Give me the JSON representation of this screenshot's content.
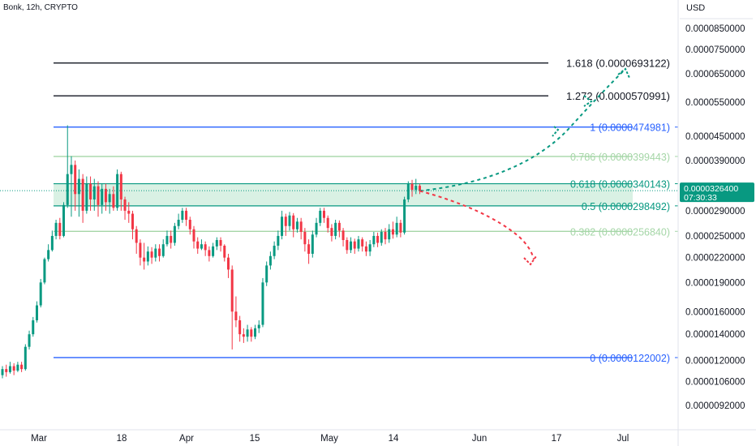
{
  "header": {
    "symbol_title": "Bonk, 12h, CRYPTO",
    "currency": "USD"
  },
  "chart_data": {
    "type": "candlestick",
    "title": "Bonk, 12h, CRYPTO",
    "price_axis_labels": [
      "0.0000850000",
      "0.0000750000",
      "0.0000650000",
      "0.0000550000",
      "0.0000450000",
      "0.0000390000",
      "0.0000290000",
      "0.0000250000",
      "0.0000220000",
      "0.0000190000",
      "0.0000160000",
      "0.0000140000",
      "0.0000120000",
      "0.0000106000",
      "0.0000092000"
    ],
    "time_axis_labels": [
      "Mar",
      "18",
      "Apr",
      "15",
      "May",
      "14",
      "Jun",
      "17",
      "Jul"
    ],
    "current_price": {
      "price": "0.0000326400",
      "countdown": "07:30:33"
    },
    "fib_levels": [
      {
        "label": "1.618 (0.0000693122)",
        "value": 6.93122e-05,
        "color": "#131722"
      },
      {
        "label": "1.272 (0.0000570991)",
        "value": 5.70991e-05,
        "color": "#131722"
      },
      {
        "label": "1 (0.0000474981)",
        "value": 4.74981e-05,
        "color": "#2962ff"
      },
      {
        "label": "0.786 (0.0000399443)",
        "value": 3.99443e-05,
        "color": "#a5d6a7"
      },
      {
        "label": "0.618 (0.0000340143)",
        "value": 3.40143e-05,
        "color": "#089981"
      },
      {
        "label": "0.5 (0.0000298492)",
        "value": 2.98492e-05,
        "color": "#089981"
      },
      {
        "label": "0.382 (0.0000256840)",
        "value": 2.5684e-05,
        "color": "#a5d6a7"
      },
      {
        "label": "0 (0.0000122002)",
        "value": 1.22002e-05,
        "color": "#2962ff"
      }
    ],
    "candles": [
      [
        1.1e-05,
        1.14e-05,
        1.08e-05,
        1.16e-05
      ],
      [
        1.14e-05,
        1.12e-05,
        1.09e-05,
        1.17e-05
      ],
      [
        1.12e-05,
        1.16e-05,
        1.11e-05,
        1.19e-05
      ],
      [
        1.16e-05,
        1.13e-05,
        1.1e-05,
        1.18e-05
      ],
      [
        1.13e-05,
        1.17e-05,
        1.12e-05,
        1.19e-05
      ],
      [
        1.17e-05,
        1.14e-05,
        1.12e-05,
        1.19e-05
      ],
      [
        1.14e-05,
        1.3e-05,
        1.13e-05,
        1.32e-05
      ],
      [
        1.3e-05,
        1.4e-05,
        1.28e-05,
        1.43e-05
      ],
      [
        1.4e-05,
        1.52e-05,
        1.38e-05,
        1.55e-05
      ],
      [
        1.52e-05,
        1.66e-05,
        1.5e-05,
        1.7e-05
      ],
      [
        1.66e-05,
        1.9e-05,
        1.64e-05,
        1.94e-05
      ],
      [
        1.9e-05,
        2.18e-05,
        1.88e-05,
        2.2e-05
      ],
      [
        2.18e-05,
        2.3e-05,
        2.15e-05,
        2.38e-05
      ],
      [
        2.3e-05,
        2.5e-05,
        2.28e-05,
        2.58e-05
      ],
      [
        2.5e-05,
        2.7e-05,
        2.45e-05,
        2.75e-05
      ],
      [
        2.7e-05,
        2.5e-05,
        2.45e-05,
        2.78e-05
      ],
      [
        2.5e-05,
        3e-05,
        2.48e-05,
        3.05e-05
      ],
      [
        3e-05,
        3.6e-05,
        2.95e-05,
        4.8e-05
      ],
      [
        3.6e-05,
        3.8e-05,
        2.8e-05,
        4e-05
      ],
      [
        3.8e-05,
        3.2e-05,
        2.9e-05,
        3.9e-05
      ],
      [
        3.2e-05,
        3.5e-05,
        2.8e-05,
        3.7e-05
      ],
      [
        3.5e-05,
        2.9e-05,
        2.7e-05,
        3.6e-05
      ],
      [
        2.9e-05,
        3.4e-05,
        2.85e-05,
        3.55e-05
      ],
      [
        3.4e-05,
        3.1e-05,
        2.9e-05,
        3.55e-05
      ],
      [
        3.1e-05,
        3.35e-05,
        2.9e-05,
        3.5e-05
      ],
      [
        3.35e-05,
        3e-05,
        2.8e-05,
        3.45e-05
      ],
      [
        3e-05,
        3.3e-05,
        2.85e-05,
        3.4e-05
      ],
      [
        3.3e-05,
        3.05e-05,
        2.9e-05,
        3.4e-05
      ],
      [
        3.05e-05,
        3.2e-05,
        2.85e-05,
        3.3e-05
      ],
      [
        3.2e-05,
        2.95e-05,
        2.9e-05,
        3.35e-05
      ],
      [
        2.95e-05,
        3.6e-05,
        2.9e-05,
        3.7e-05
      ],
      [
        3.6e-05,
        3.1e-05,
        2.9e-05,
        3.65e-05
      ],
      [
        3.1e-05,
        2.9e-05,
        2.75e-05,
        3.15e-05
      ],
      [
        2.9e-05,
        2.85e-05,
        2.7e-05,
        3.05e-05
      ],
      [
        2.85e-05,
        2.6e-05,
        2.45e-05,
        2.9e-05
      ],
      [
        2.6e-05,
        2.4e-05,
        2.25e-05,
        2.65e-05
      ],
      [
        2.4e-05,
        2.2e-05,
        2.1e-05,
        2.45e-05
      ],
      [
        2.2e-05,
        2.15e-05,
        2.05e-05,
        2.4e-05
      ],
      [
        2.15e-05,
        2.28e-05,
        2.1e-05,
        2.35e-05
      ],
      [
        2.28e-05,
        2.2e-05,
        2.12e-05,
        2.34e-05
      ],
      [
        2.2e-05,
        2.32e-05,
        2.15e-05,
        2.38e-05
      ],
      [
        2.32e-05,
        2.22e-05,
        2.15e-05,
        2.38e-05
      ],
      [
        2.22e-05,
        2.38e-05,
        2.2e-05,
        2.45e-05
      ],
      [
        2.38e-05,
        2.5e-05,
        2.35e-05,
        2.58e-05
      ],
      [
        2.5e-05,
        2.4e-05,
        2.32e-05,
        2.58e-05
      ],
      [
        2.4e-05,
        2.65e-05,
        2.36e-05,
        2.7e-05
      ],
      [
        2.65e-05,
        2.75e-05,
        2.6e-05,
        2.85e-05
      ],
      [
        2.75e-05,
        2.9e-05,
        2.7e-05,
        2.95e-05
      ],
      [
        2.9e-05,
        2.75e-05,
        2.65e-05,
        2.95e-05
      ],
      [
        2.75e-05,
        2.6e-05,
        2.52e-05,
        2.8e-05
      ],
      [
        2.6e-05,
        2.42e-05,
        2.32e-05,
        2.65e-05
      ],
      [
        2.42e-05,
        2.32e-05,
        2.25e-05,
        2.48e-05
      ],
      [
        2.32e-05,
        2.38e-05,
        2.3e-05,
        2.45e-05
      ],
      [
        2.38e-05,
        2.3e-05,
        2.22e-05,
        2.42e-05
      ],
      [
        2.3e-05,
        2.22e-05,
        2.15e-05,
        2.35e-05
      ],
      [
        2.22e-05,
        2.35e-05,
        2.2e-05,
        2.4e-05
      ],
      [
        2.35e-05,
        2.44e-05,
        2.3e-05,
        2.48e-05
      ],
      [
        2.44e-05,
        2.36e-05,
        2.28e-05,
        2.48e-05
      ],
      [
        2.36e-05,
        2.2e-05,
        2.15e-05,
        2.38e-05
      ],
      [
        2.2e-05,
        2.05e-05,
        1.95e-05,
        2.25e-05
      ],
      [
        2.05e-05,
        1.6e-05,
        1.28e-05,
        2.1e-05
      ],
      [
        1.6e-05,
        1.52e-05,
        1.46e-05,
        1.75e-05
      ],
      [
        1.52e-05,
        1.4e-05,
        1.34e-05,
        1.56e-05
      ],
      [
        1.4e-05,
        1.38e-05,
        1.33e-05,
        1.45e-05
      ],
      [
        1.38e-05,
        1.44e-05,
        1.34e-05,
        1.48e-05
      ],
      [
        1.44e-05,
        1.38e-05,
        1.34e-05,
        1.46e-05
      ],
      [
        1.38e-05,
        1.45e-05,
        1.36e-05,
        1.48e-05
      ],
      [
        1.45e-05,
        1.48e-05,
        1.41e-05,
        1.52e-05
      ],
      [
        1.48e-05,
        1.9e-05,
        1.46e-05,
        1.95e-05
      ],
      [
        1.9e-05,
        2.1e-05,
        1.86e-05,
        2.15e-05
      ],
      [
        2.1e-05,
        2.22e-05,
        2.05e-05,
        2.28e-05
      ],
      [
        2.22e-05,
        2.36e-05,
        2.18e-05,
        2.42e-05
      ],
      [
        2.36e-05,
        2.5e-05,
        2.3e-05,
        2.58e-05
      ],
      [
        2.5e-05,
        2.8e-05,
        2.45e-05,
        2.9e-05
      ],
      [
        2.8e-05,
        2.65e-05,
        2.5e-05,
        2.85e-05
      ],
      [
        2.65e-05,
        2.82e-05,
        2.58e-05,
        2.88e-05
      ],
      [
        2.82e-05,
        2.6e-05,
        2.48e-05,
        2.86e-05
      ],
      [
        2.6e-05,
        2.72e-05,
        2.55e-05,
        2.78e-05
      ],
      [
        2.72e-05,
        2.56e-05,
        2.45e-05,
        2.78e-05
      ],
      [
        2.56e-05,
        2.38e-05,
        2.28e-05,
        2.62e-05
      ],
      [
        2.38e-05,
        2.25e-05,
        2.12e-05,
        2.45e-05
      ],
      [
        2.25e-05,
        2.52e-05,
        2.2e-05,
        2.58e-05
      ],
      [
        2.52e-05,
        2.7e-05,
        2.48e-05,
        2.78e-05
      ],
      [
        2.7e-05,
        2.9e-05,
        2.65e-05,
        2.95e-05
      ],
      [
        2.9e-05,
        2.78e-05,
        2.7e-05,
        2.95e-05
      ],
      [
        2.78e-05,
        2.62e-05,
        2.55e-05,
        2.82e-05
      ],
      [
        2.62e-05,
        2.5e-05,
        2.42e-05,
        2.68e-05
      ],
      [
        2.5e-05,
        2.7e-05,
        2.45e-05,
        2.75e-05
      ],
      [
        2.7e-05,
        2.58e-05,
        2.48e-05,
        2.74e-05
      ],
      [
        2.58e-05,
        2.44e-05,
        2.35e-05,
        2.62e-05
      ],
      [
        2.44e-05,
        2.3e-05,
        2.25e-05,
        2.48e-05
      ],
      [
        2.3e-05,
        2.42e-05,
        2.26e-05,
        2.48e-05
      ],
      [
        2.42e-05,
        2.32e-05,
        2.25e-05,
        2.46e-05
      ],
      [
        2.32e-05,
        2.45e-05,
        2.28e-05,
        2.5e-05
      ],
      [
        2.45e-05,
        2.35e-05,
        2.28e-05,
        2.48e-05
      ],
      [
        2.35e-05,
        2.28e-05,
        2.22e-05,
        2.42e-05
      ],
      [
        2.28e-05,
        2.38e-05,
        2.22e-05,
        2.44e-05
      ],
      [
        2.38e-05,
        2.5e-05,
        2.34e-05,
        2.56e-05
      ],
      [
        2.5e-05,
        2.4e-05,
        2.34e-05,
        2.55e-05
      ],
      [
        2.4e-05,
        2.56e-05,
        2.36e-05,
        2.6e-05
      ],
      [
        2.56e-05,
        2.45e-05,
        2.38e-05,
        2.62e-05
      ],
      [
        2.45e-05,
        2.6e-05,
        2.4e-05,
        2.68e-05
      ],
      [
        2.6e-05,
        2.52e-05,
        2.46e-05,
        2.72e-05
      ],
      [
        2.52e-05,
        2.7e-05,
        2.48e-05,
        2.8e-05
      ],
      [
        2.7e-05,
        2.55e-05,
        2.48e-05,
        2.75e-05
      ],
      [
        2.55e-05,
        3.1e-05,
        2.52e-05,
        3.15e-05
      ],
      [
        3.1e-05,
        3.4e-05,
        3.05e-05,
        3.45e-05
      ],
      [
        3.4e-05,
        3.28e-05,
        3.15e-05,
        3.48e-05
      ],
      [
        3.28e-05,
        3.36e-05,
        3.2e-05,
        3.5e-05
      ],
      [
        3.36e-05,
        3.26e-05,
        3.2e-05,
        3.4e-05
      ]
    ],
    "forecast_paths": [
      {
        "direction": "up",
        "color": "#089981"
      },
      {
        "direction": "down",
        "color": "#f23645"
      }
    ],
    "colors": {
      "up": "#089981",
      "down": "#f23645",
      "zone_fill": "#cfeedd",
      "axis_text": "#131722"
    }
  }
}
